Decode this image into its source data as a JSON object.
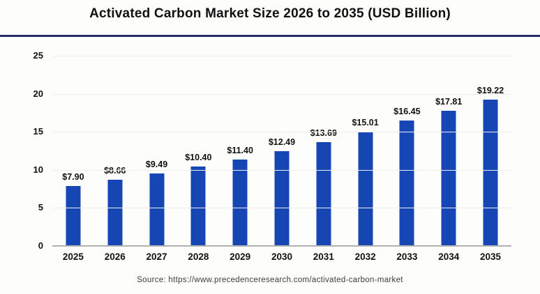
{
  "figure": {
    "title": "Activated Carbon Market Size 2026 to 2035 (USD Billion)",
    "source": "Source: https://www.precedenceresearch.com/activated-carbon-market"
  },
  "chart_data": {
    "type": "bar",
    "title": "Activated Carbon Market Size 2026 to 2035 (USD Billion)",
    "categories": [
      "2025",
      "2026",
      "2027",
      "2028",
      "2029",
      "2030",
      "2031",
      "2032",
      "2033",
      "2034",
      "2035"
    ],
    "values": [
      7.9,
      8.66,
      9.49,
      10.4,
      11.4,
      12.49,
      13.69,
      15.01,
      16.45,
      17.81,
      19.22
    ],
    "data_labels": [
      "$7.90",
      "$8.66",
      "$9.49",
      "$10.40",
      "$11.40",
      "$12.49",
      "$13.69",
      "$15.01",
      "$16.45",
      "$17.81",
      "$19.22"
    ],
    "xlabel": "",
    "ylabel": "",
    "ylim": [
      0,
      25
    ],
    "yticks": [
      0,
      5,
      10,
      15,
      20,
      25
    ],
    "grid": "horizontal-light",
    "legend": "none",
    "source": "Source: https://www.precedenceresearch.com/activated-carbon-market"
  },
  "colors": {
    "bar": "#1646B4",
    "title_rule": "#232A66",
    "baseline": "#B0B0B0",
    "gridline": "#EDEDED",
    "title_text": "#111111",
    "source_text": "#3D3D3D"
  }
}
